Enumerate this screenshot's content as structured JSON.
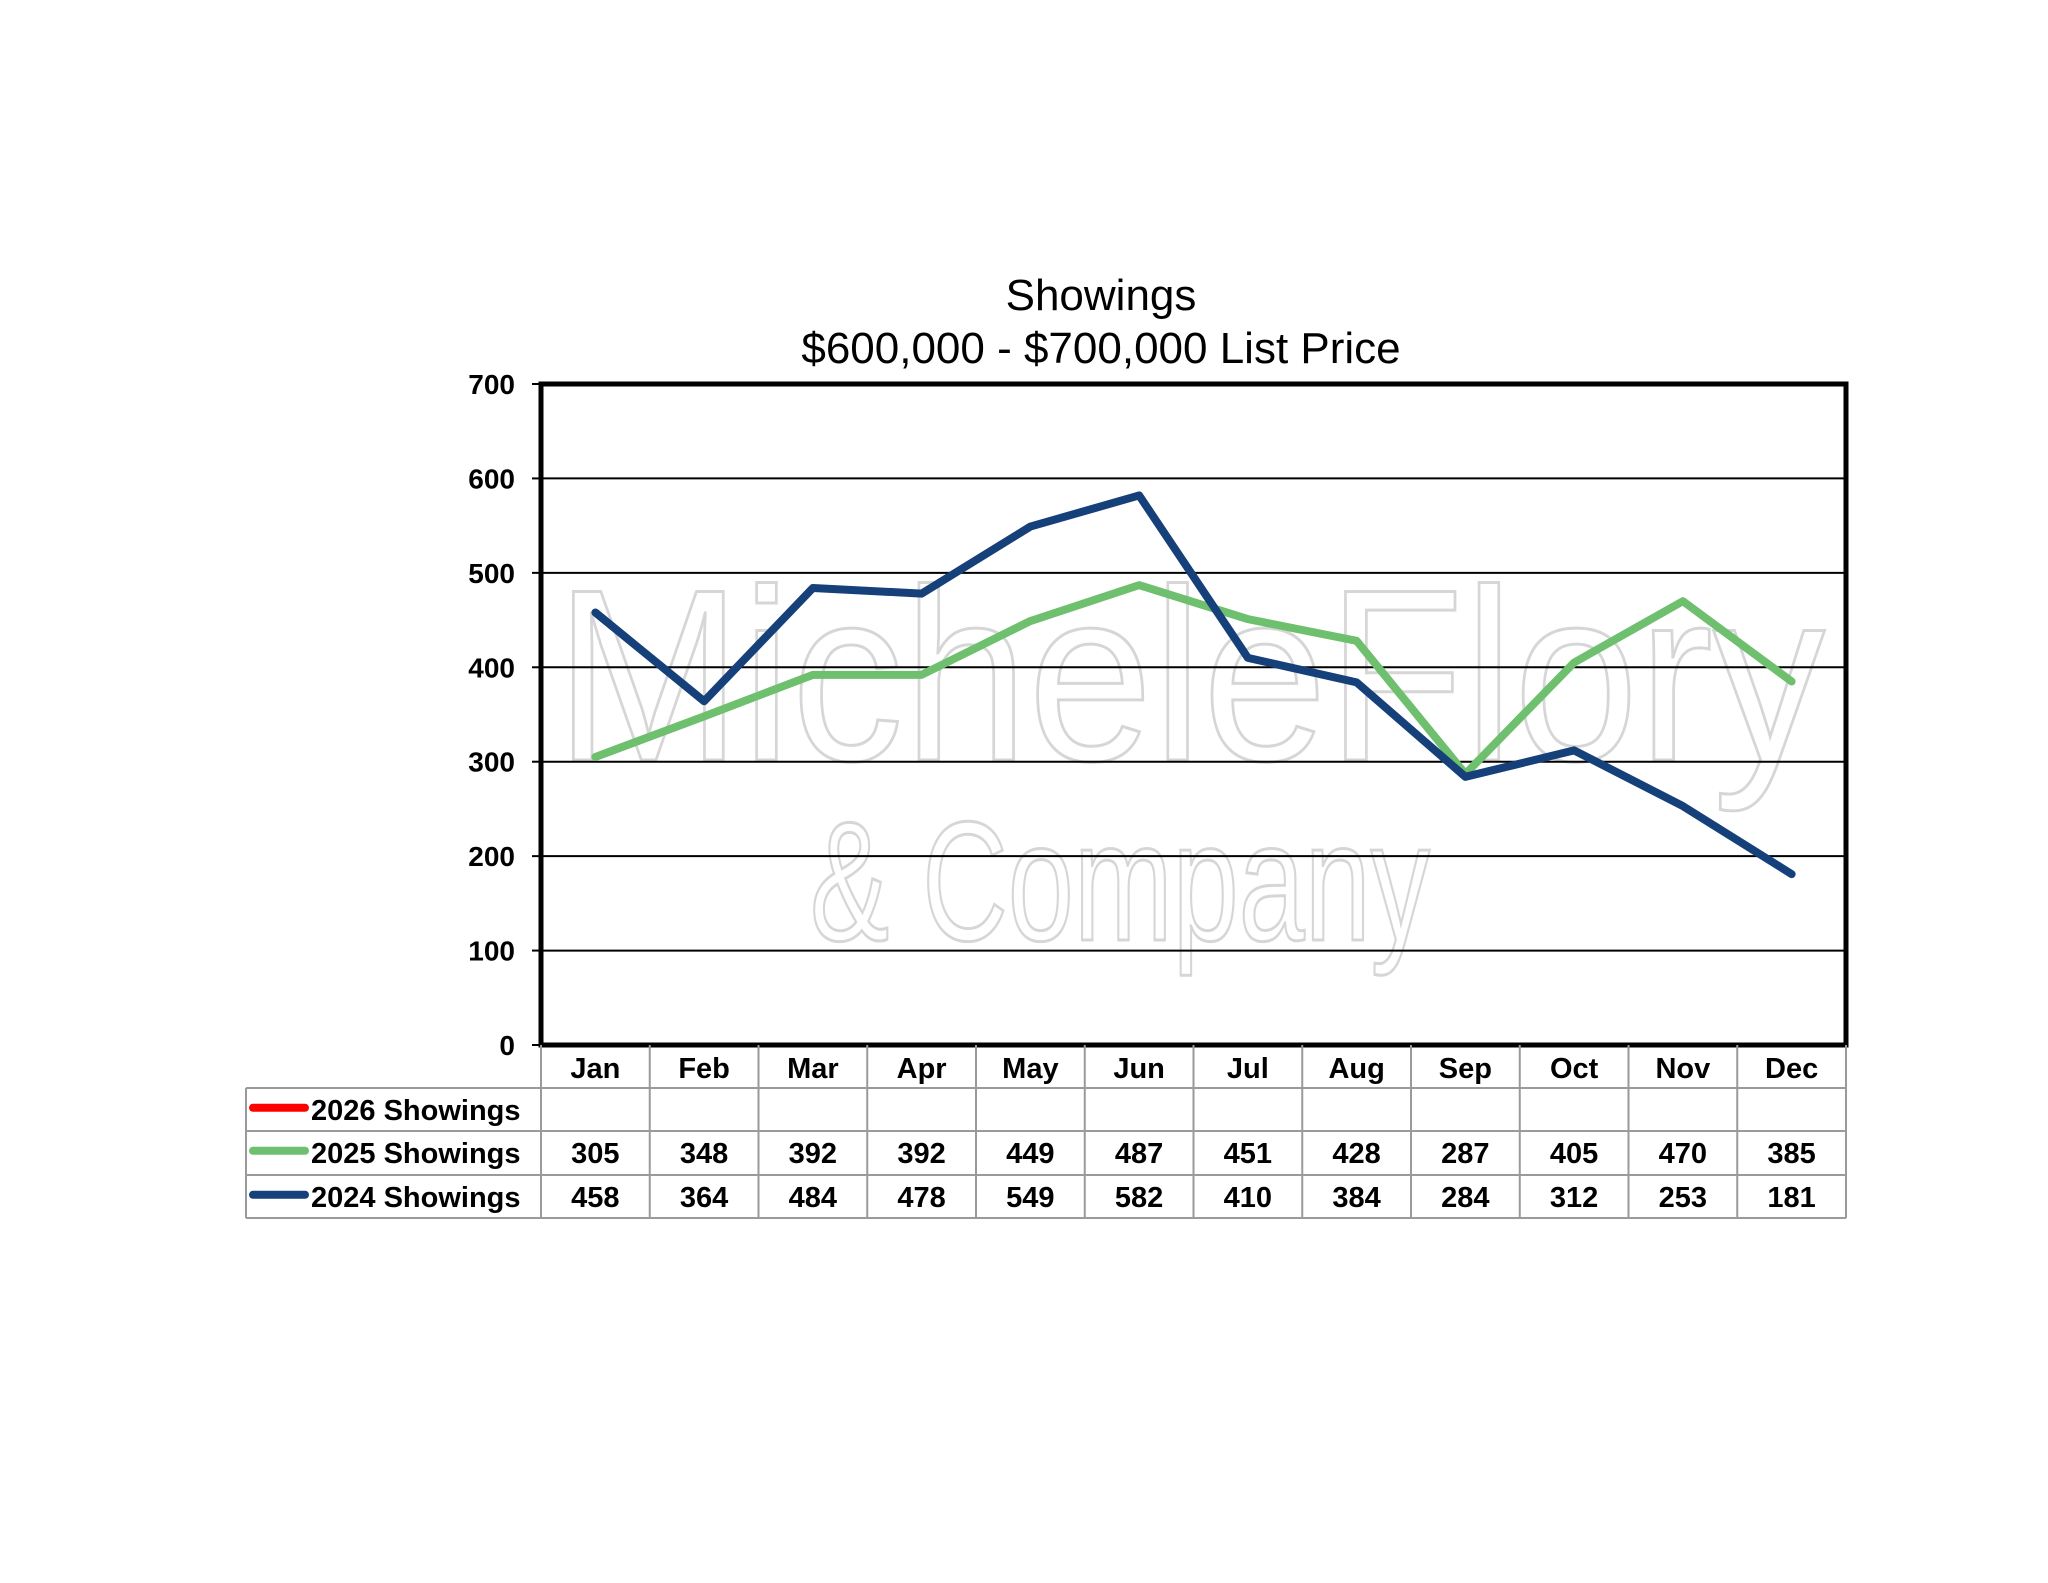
{
  "chart_data": {
    "type": "line",
    "title": "Showings",
    "subtitle": "$600,000 - $700,000 List Price",
    "categories": [
      "Jan",
      "Feb",
      "Mar",
      "Apr",
      "May",
      "Jun",
      "Jul",
      "Aug",
      "Sep",
      "Oct",
      "Nov",
      "Dec"
    ],
    "series": [
      {
        "name": "2026 Showings",
        "color": "#ff0000",
        "values": [
          null,
          null,
          null,
          null,
          null,
          null,
          null,
          null,
          null,
          null,
          null,
          null
        ]
      },
      {
        "name": "2025 Showings",
        "color": "#6ebf6e",
        "values": [
          305,
          348,
          392,
          392,
          449,
          487,
          451,
          428,
          287,
          405,
          470,
          385
        ]
      },
      {
        "name": "2024 Showings",
        "color": "#16407a",
        "values": [
          458,
          364,
          484,
          478,
          549,
          582,
          410,
          384,
          284,
          312,
          253,
          181
        ]
      }
    ],
    "ylim": [
      0,
      700
    ],
    "yticks": [
      0,
      100,
      200,
      300,
      400,
      500,
      600,
      700
    ],
    "grid": true,
    "legend": "data-table-below"
  },
  "watermark": {
    "line1": "MicheleFlory",
    "line2": "& Company"
  }
}
